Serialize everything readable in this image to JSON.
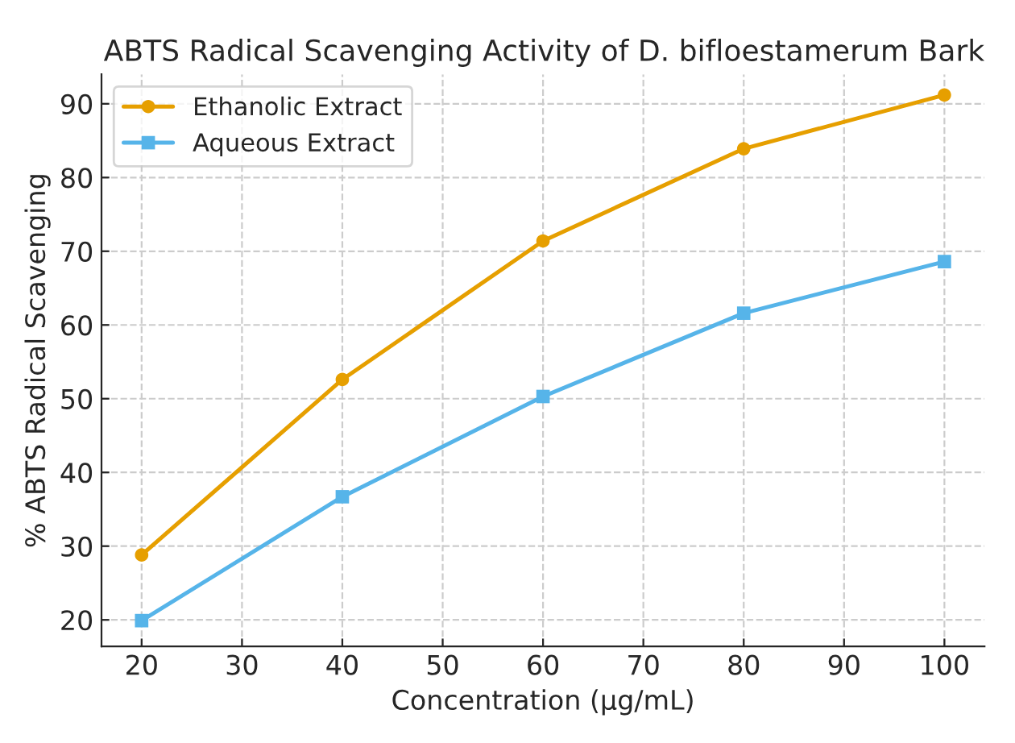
{
  "chart_data": {
    "type": "line",
    "title": "ABTS Radical Scavenging Activity of D. bifloestamerum Bark",
    "xlabel": "Concentration (µg/mL)",
    "ylabel": "% ABTS Radical Scavenging",
    "x": [
      20,
      40,
      60,
      80,
      100
    ],
    "series": [
      {
        "name": "Ethanolic Extract",
        "color": "#e69f00",
        "marker": "circle",
        "values": [
          28.8,
          52.6,
          71.4,
          83.9,
          91.2
        ]
      },
      {
        "name": "Aqueous Extract",
        "color": "#56b4e9",
        "marker": "square",
        "values": [
          19.9,
          36.7,
          50.3,
          61.6,
          68.6
        ]
      }
    ],
    "xlim": [
      16,
      104
    ],
    "ylim": [
      16.4,
      94
    ],
    "xticks": [
      20,
      30,
      40,
      50,
      60,
      70,
      80,
      90,
      100
    ],
    "yticks": [
      20,
      30,
      40,
      50,
      60,
      70,
      80,
      90
    ],
    "grid": true,
    "legend": "top left",
    "line_style": "solid"
  }
}
